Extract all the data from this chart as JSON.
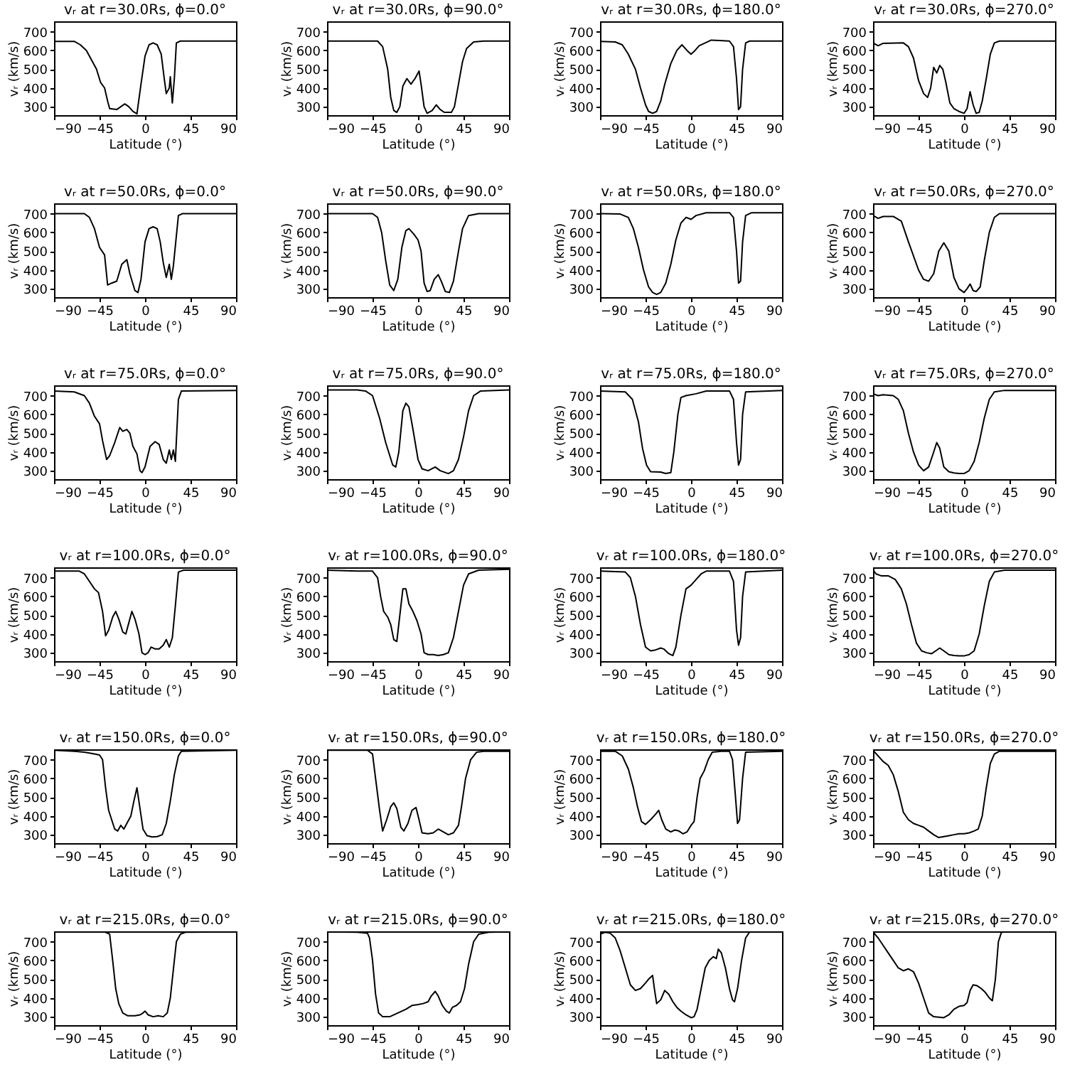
{
  "chart_data": [
    {
      "type": "line",
      "title": "vᵣ at r=30.0Rs, ϕ=0.0°",
      "xlabel": "Latitude (°)",
      "ylabel": "vᵣ (km/s)",
      "color": "#000000",
      "xlim": [
        -90,
        90
      ],
      "xticks": [
        -90,
        -45,
        0,
        45,
        90
      ],
      "ylim": [
        255,
        755
      ],
      "yticks": [
        300,
        400,
        500,
        600,
        700
      ],
      "x": [
        -90,
        -70,
        -64,
        -58,
        -52,
        -48,
        -44,
        -40,
        -37,
        -35,
        -28,
        -24,
        -20,
        -16,
        -12,
        -8,
        -4,
        0,
        4,
        8,
        12,
        16,
        19,
        21,
        24,
        25,
        27,
        29,
        31,
        35,
        90
      ],
      "values": [
        648,
        648,
        630,
        600,
        540,
        500,
        430,
        400,
        330,
        290,
        285,
        300,
        315,
        300,
        275,
        262,
        420,
        570,
        630,
        640,
        630,
        580,
        450,
        370,
        400,
        460,
        320,
        450,
        640,
        650,
        650
      ]
    },
    {
      "type": "line",
      "title": "vᵣ at r=30.0Rs, ϕ=90.0°",
      "xlabel": "Latitude (°)",
      "ylabel": "vᵣ (km/s)",
      "color": "#000000",
      "xlim": [
        -90,
        90
      ],
      "xticks": [
        -90,
        -45,
        0,
        45,
        90
      ],
      "ylim": [
        255,
        755
      ],
      "yticks": [
        300,
        400,
        500,
        600,
        700
      ],
      "x": [
        -90,
        -40,
        -35,
        -30,
        -27,
        -24,
        -21,
        -18,
        -15,
        -11,
        -7,
        -3,
        1,
        3,
        6,
        9,
        14,
        18,
        22,
        26,
        33,
        36,
        40,
        44,
        48,
        55,
        65,
        90
      ],
      "values": [
        650,
        650,
        620,
        500,
        350,
        280,
        270,
        300,
        410,
        450,
        420,
        450,
        490,
        420,
        300,
        265,
        280,
        310,
        285,
        270,
        270,
        300,
        420,
        540,
        610,
        645,
        650,
        650
      ]
    },
    {
      "type": "line",
      "title": "vᵣ at r=30.0Rs, ϕ=180.0°",
      "xlabel": "Latitude (°)",
      "ylabel": "vᵣ (km/s)",
      "color": "#000000",
      "xlim": [
        -90,
        90
      ],
      "xticks": [
        -90,
        -45,
        0,
        45,
        90
      ],
      "ylim": [
        255,
        755
      ],
      "yticks": [
        300,
        400,
        500,
        600,
        700
      ],
      "x": [
        -90,
        -75,
        -68,
        -62,
        -55,
        -50,
        -45,
        -42,
        -38,
        -34,
        -30,
        -26,
        -20,
        -14,
        -9,
        -4,
        0,
        4,
        8,
        14,
        20,
        38,
        42,
        45,
        47,
        49,
        51,
        54,
        58,
        90
      ],
      "values": [
        648,
        645,
        630,
        580,
        500,
        400,
        310,
        275,
        265,
        275,
        330,
        420,
        530,
        600,
        630,
        600,
        580,
        600,
        625,
        640,
        655,
        650,
        620,
        450,
        285,
        300,
        500,
        640,
        650,
        650
      ]
    },
    {
      "type": "line",
      "title": "vᵣ at r=30.0Rs, ϕ=270.0°",
      "xlabel": "Latitude (°)",
      "ylabel": "vᵣ (km/s)",
      "color": "#000000",
      "xlim": [
        -90,
        90
      ],
      "xticks": [
        -90,
        -45,
        0,
        45,
        90
      ],
      "ylim": [
        255,
        755
      ],
      "yticks": [
        300,
        400,
        500,
        600,
        700
      ],
      "x": [
        -90,
        -85,
        -80,
        -60,
        -55,
        -50,
        -45,
        -40,
        -36,
        -33,
        -30,
        -27,
        -24,
        -21,
        -18,
        -14,
        -10,
        -5,
        0,
        3,
        6,
        9,
        12,
        15,
        18,
        22,
        26,
        30,
        35,
        90
      ],
      "values": [
        640,
        625,
        638,
        640,
        620,
        560,
        440,
        370,
        350,
        400,
        510,
        480,
        520,
        500,
        430,
        320,
        290,
        275,
        265,
        290,
        380,
        310,
        265,
        270,
        330,
        450,
        580,
        640,
        650,
        650
      ]
    },
    {
      "type": "line",
      "title": "vᵣ at r=50.0Rs, ϕ=0.0°",
      "xlabel": "Latitude (°)",
      "ylabel": "vᵣ (km/s)",
      "color": "#000000",
      "xlim": [
        -90,
        90
      ],
      "xticks": [
        -90,
        -45,
        0,
        45,
        90
      ],
      "ylim": [
        255,
        755
      ],
      "yticks": [
        300,
        400,
        500,
        600,
        700
      ],
      "x": [
        -90,
        -60,
        -55,
        -50,
        -45,
        -40,
        -37,
        -33,
        -28,
        -23,
        -18,
        -15,
        -10,
        -7,
        -4,
        0,
        4,
        8,
        12,
        15,
        18,
        21,
        24,
        26,
        28,
        33,
        37,
        90
      ],
      "values": [
        700,
        700,
        680,
        620,
        520,
        480,
        320,
        330,
        340,
        430,
        455,
        380,
        290,
        280,
        350,
        550,
        620,
        630,
        620,
        550,
        440,
        360,
        430,
        350,
        420,
        690,
        700,
        700
      ]
    },
    {
      "type": "line",
      "title": "vᵣ at r=50.0Rs, ϕ=90.0°",
      "xlabel": "Latitude (°)",
      "ylabel": "vᵣ (km/s)",
      "color": "#000000",
      "xlim": [
        -90,
        90
      ],
      "xticks": [
        -90,
        -45,
        0,
        45,
        90
      ],
      "ylim": [
        255,
        755
      ],
      "yticks": [
        300,
        400,
        500,
        600,
        700
      ],
      "x": [
        -90,
        -45,
        -40,
        -36,
        -32,
        -28,
        -24,
        -20,
        -16,
        -12,
        -9,
        -4,
        0,
        3,
        6,
        9,
        12,
        16,
        20,
        23,
        27,
        31,
        35,
        40,
        44,
        50,
        60,
        90
      ],
      "values": [
        700,
        700,
        680,
        600,
        450,
        320,
        290,
        350,
        520,
        610,
        620,
        590,
        560,
        500,
        330,
        285,
        290,
        350,
        375,
        340,
        285,
        280,
        340,
        500,
        620,
        690,
        700,
        700
      ]
    },
    {
      "type": "line",
      "title": "vᵣ at r=50.0Rs, ϕ=180.0°",
      "xlabel": "Latitude (°)",
      "ylabel": "vᵣ (km/s)",
      "color": "#000000",
      "xlim": [
        -90,
        90
      ],
      "xticks": [
        -90,
        -45,
        0,
        45,
        90
      ],
      "ylim": [
        255,
        755
      ],
      "yticks": [
        300,
        400,
        500,
        600,
        700
      ],
      "x": [
        -90,
        -70,
        -62,
        -57,
        -52,
        -47,
        -42,
        -38,
        -34,
        -30,
        -25,
        -20,
        -15,
        -10,
        -5,
        0,
        5,
        15,
        38,
        42,
        45,
        47,
        49,
        51,
        54,
        60,
        90
      ],
      "values": [
        700,
        698,
        680,
        620,
        520,
        400,
        310,
        280,
        270,
        280,
        330,
        430,
        560,
        650,
        680,
        670,
        690,
        705,
        705,
        680,
        500,
        330,
        340,
        550,
        690,
        705,
        705
      ]
    },
    {
      "type": "line",
      "title": "vᵣ at r=50.0Rs, ϕ=270.0°",
      "xlabel": "Latitude (°)",
      "ylabel": "vᵣ (km/s)",
      "color": "#000000",
      "xlim": [
        -90,
        90
      ],
      "xticks": [
        -90,
        -45,
        0,
        45,
        90
      ],
      "ylim": [
        255,
        755
      ],
      "yticks": [
        300,
        400,
        500,
        600,
        700
      ],
      "x": [
        -90,
        -85,
        -80,
        -70,
        -62,
        -55,
        -45,
        -40,
        -35,
        -30,
        -25,
        -20,
        -15,
        -10,
        -5,
        0,
        3,
        6,
        9,
        12,
        16,
        20,
        25,
        30,
        35,
        90
      ],
      "values": [
        690,
        675,
        685,
        685,
        660,
        550,
        400,
        350,
        340,
        380,
        500,
        545,
        500,
        360,
        300,
        280,
        300,
        325,
        290,
        285,
        310,
        450,
        600,
        680,
        700,
        700
      ]
    },
    {
      "type": "line",
      "title": "vᵣ at r=75.0Rs, ϕ=0.0°",
      "xlabel": "Latitude (°)",
      "ylabel": "vᵣ (km/s)",
      "color": "#000000",
      "xlim": [
        -90,
        90
      ],
      "xticks": [
        -90,
        -45,
        0,
        45,
        90
      ],
      "ylim": [
        255,
        755
      ],
      "yticks": [
        300,
        400,
        500,
        600,
        700
      ],
      "x": [
        -90,
        -70,
        -60,
        -55,
        -50,
        -45,
        -42,
        -38,
        -35,
        -30,
        -25,
        -22,
        -18,
        -15,
        -12,
        -8,
        -5,
        -3,
        0,
        5,
        10,
        14,
        18,
        21,
        24,
        26,
        28,
        30,
        33,
        36,
        90
      ],
      "values": [
        725,
        720,
        700,
        660,
        590,
        550,
        460,
        360,
        380,
        450,
        530,
        510,
        520,
        500,
        430,
        390,
        300,
        290,
        320,
        430,
        455,
        440,
        360,
        340,
        410,
        360,
        410,
        350,
        680,
        725,
        728
      ]
    },
    {
      "type": "line",
      "title": "vᵣ at r=75.0Rs, ϕ=90.0°",
      "xlabel": "Latitude (°)",
      "ylabel": "vᵣ (km/s)",
      "color": "#000000",
      "xlim": [
        -90,
        90
      ],
      "xticks": [
        -90,
        -45,
        0,
        45,
        90
      ],
      "ylim": [
        255,
        755
      ],
      "yticks": [
        300,
        400,
        500,
        600,
        700
      ],
      "x": [
        -90,
        -60,
        -52,
        -45,
        -38,
        -32,
        -25,
        -22,
        -19,
        -15,
        -12,
        -9,
        -5,
        0,
        4,
        10,
        17,
        22,
        30,
        35,
        40,
        45,
        50,
        55,
        62,
        90
      ],
      "values": [
        730,
        730,
        725,
        700,
        580,
        450,
        330,
        320,
        400,
        620,
        660,
        640,
        520,
        360,
        310,
        300,
        320,
        300,
        285,
        300,
        360,
        480,
        620,
        700,
        725,
        730
      ]
    },
    {
      "type": "line",
      "title": "vᵣ at r=75.0Rs, ϕ=180.0°",
      "xlabel": "Latitude (°)",
      "ylabel": "vᵣ (km/s)",
      "color": "#000000",
      "xlim": [
        -90,
        90
      ],
      "xticks": [
        -90,
        -45,
        0,
        45,
        90
      ],
      "ylim": [
        255,
        755
      ],
      "yticks": [
        300,
        400,
        500,
        600,
        700
      ],
      "x": [
        -90,
        -65,
        -58,
        -52,
        -48,
        -44,
        -40,
        -30,
        -25,
        -20,
        -17,
        -13,
        -10,
        -5,
        5,
        15,
        38,
        42,
        45,
        47,
        49,
        51,
        54,
        90
      ],
      "values": [
        725,
        720,
        680,
        560,
        420,
        330,
        295,
        293,
        285,
        290,
        400,
        600,
        690,
        700,
        710,
        725,
        725,
        680,
        450,
        330,
        360,
        600,
        720,
        728
      ]
    },
    {
      "type": "line",
      "title": "vᵣ at r=75.0Rs, ϕ=270.0°",
      "xlabel": "Latitude (°)",
      "ylabel": "vᵣ (km/s)",
      "color": "#000000",
      "xlim": [
        -90,
        90
      ],
      "xticks": [
        -90,
        -45,
        0,
        45,
        90
      ],
      "ylim": [
        255,
        755
      ],
      "yticks": [
        300,
        400,
        500,
        600,
        700
      ],
      "x": [
        -90,
        -85,
        -80,
        -70,
        -65,
        -60,
        -55,
        -50,
        -45,
        -40,
        -35,
        -30,
        -27,
        -24,
        -20,
        -15,
        -10,
        -5,
        0,
        5,
        10,
        15,
        20,
        25,
        30,
        40,
        90
      ],
      "values": [
        710,
        700,
        705,
        700,
        680,
        620,
        500,
        400,
        330,
        300,
        320,
        400,
        450,
        420,
        320,
        295,
        288,
        285,
        285,
        300,
        350,
        450,
        580,
        680,
        720,
        728,
        728
      ]
    },
    {
      "type": "line",
      "title": "vᵣ at r=100.0Rs, ϕ=0.0°",
      "xlabel": "Latitude (°)",
      "ylabel": "vᵣ (km/s)",
      "color": "#000000",
      "xlim": [
        -90,
        90
      ],
      "xticks": [
        -90,
        -45,
        0,
        45,
        90
      ],
      "ylim": [
        255,
        755
      ],
      "yticks": [
        300,
        400,
        500,
        600,
        700
      ],
      "x": [
        -90,
        -65,
        -60,
        -55,
        -50,
        -46,
        -42,
        -39,
        -36,
        -32,
        -29,
        -26,
        -22,
        -19,
        -16,
        -13,
        -10,
        -6,
        -3,
        0,
        3,
        6,
        10,
        14,
        18,
        21,
        24,
        27,
        30,
        33,
        38,
        90
      ],
      "values": [
        735,
        735,
        720,
        680,
        640,
        620,
        520,
        390,
        420,
        490,
        520,
        480,
        410,
        400,
        460,
        520,
        480,
        400,
        300,
        290,
        300,
        330,
        320,
        320,
        340,
        370,
        330,
        380,
        550,
        730,
        740,
        740
      ]
    },
    {
      "type": "line",
      "title": "vᵣ at r=100.0Rs, ϕ=90.0°",
      "xlabel": "Latitude (°)",
      "ylabel": "vᵣ (km/s)",
      "color": "#000000",
      "xlim": [
        -90,
        90
      ],
      "xticks": [
        -90,
        -45,
        0,
        45,
        90
      ],
      "ylim": [
        255,
        755
      ],
      "yticks": [
        300,
        400,
        500,
        600,
        700
      ],
      "x": [
        -90,
        -60,
        -45,
        -40,
        -37,
        -34,
        -30,
        -27,
        -24,
        -21,
        -18,
        -15,
        -12,
        -9,
        -5,
        -1,
        3,
        6,
        10,
        15,
        20,
        25,
        30,
        35,
        40,
        45,
        50,
        60,
        90
      ],
      "values": [
        740,
        735,
        735,
        700,
        600,
        520,
        490,
        450,
        370,
        360,
        500,
        640,
        640,
        560,
        520,
        470,
        400,
        300,
        290,
        290,
        285,
        290,
        300,
        380,
        520,
        660,
        720,
        740,
        745
      ]
    },
    {
      "type": "line",
      "title": "vᵣ at r=100.0Rs, ϕ=180.0°",
      "xlabel": "Latitude (°)",
      "ylabel": "vᵣ (km/s)",
      "color": "#000000",
      "xlim": [
        -90,
        90
      ],
      "xticks": [
        -90,
        -45,
        0,
        45,
        90
      ],
      "ylim": [
        255,
        755
      ],
      "yticks": [
        300,
        400,
        500,
        600,
        700
      ],
      "x": [
        -90,
        -65,
        -60,
        -55,
        -50,
        -45,
        -40,
        -35,
        -30,
        -27,
        -22,
        -18,
        -15,
        -10,
        -5,
        0,
        5,
        10,
        15,
        38,
        42,
        45,
        47,
        49,
        51,
        54,
        90
      ],
      "values": [
        735,
        730,
        700,
        600,
        450,
        330,
        310,
        315,
        325,
        320,
        295,
        285,
        330,
        500,
        640,
        660,
        690,
        720,
        735,
        735,
        680,
        420,
        340,
        380,
        600,
        730,
        740
      ]
    },
    {
      "type": "line",
      "title": "vᵣ at r=100.0Rs, ϕ=270.0°",
      "xlabel": "Latitude (°)",
      "ylabel": "vᵣ (km/s)",
      "color": "#000000",
      "xlim": [
        -90,
        90
      ],
      "xticks": [
        -90,
        -45,
        0,
        45,
        90
      ],
      "ylim": [
        255,
        755
      ],
      "yticks": [
        300,
        400,
        500,
        600,
        700
      ],
      "x": [
        -90,
        -87,
        -82,
        -75,
        -68,
        -62,
        -57,
        -52,
        -47,
        -42,
        -37,
        -32,
        -28,
        -24,
        -20,
        -15,
        -10,
        -5,
        0,
        5,
        10,
        15,
        20,
        25,
        30,
        40,
        90
      ],
      "values": [
        740,
        720,
        710,
        710,
        690,
        640,
        560,
        450,
        350,
        310,
        300,
        295,
        310,
        325,
        310,
        290,
        285,
        283,
        283,
        290,
        310,
        400,
        550,
        680,
        730,
        740,
        740
      ]
    },
    {
      "type": "line",
      "title": "vᵣ at r=150.0Rs, ϕ=0.0°",
      "xlabel": "Latitude (°)",
      "ylabel": "vᵣ (km/s)",
      "color": "#000000",
      "xlim": [
        -90,
        90
      ],
      "xticks": [
        -90,
        -45,
        0,
        45,
        90
      ],
      "ylim": [
        255,
        755
      ],
      "yticks": [
        300,
        400,
        500,
        600,
        700
      ],
      "x": [
        -90,
        -70,
        -60,
        -50,
        -45,
        -42,
        -39,
        -36,
        -33,
        -30,
        -27,
        -24,
        -21,
        -18,
        -14,
        -11,
        -8,
        -5,
        -2,
        2,
        7,
        12,
        17,
        21,
        25,
        29,
        33,
        36,
        90
      ],
      "values": [
        750,
        745,
        740,
        730,
        725,
        700,
        550,
        430,
        380,
        330,
        320,
        350,
        330,
        360,
        400,
        480,
        550,
        440,
        330,
        295,
        288,
        290,
        300,
        360,
        480,
        620,
        720,
        745,
        750
      ]
    },
    {
      "type": "line",
      "title": "vᵣ at r=150.0Rs, ϕ=90.0°",
      "xlabel": "Latitude (°)",
      "ylabel": "vᵣ (km/s)",
      "color": "#000000",
      "xlim": [
        -90,
        90
      ],
      "xticks": [
        -90,
        -45,
        0,
        45,
        90
      ],
      "ylim": [
        255,
        755
      ],
      "yticks": [
        300,
        400,
        500,
        600,
        700
      ],
      "x": [
        -90,
        -50,
        -45,
        -42,
        -38,
        -35,
        -31,
        -27,
        -24,
        -21,
        -17,
        -14,
        -10,
        -6,
        -2,
        1,
        4,
        10,
        15,
        20,
        25,
        30,
        35,
        40,
        43,
        47,
        52,
        58,
        65,
        90
      ],
      "values": [
        750,
        750,
        730,
        600,
        430,
        320,
        380,
        450,
        470,
        440,
        340,
        320,
        360,
        430,
        445,
        380,
        310,
        305,
        310,
        330,
        315,
        300,
        310,
        350,
        450,
        600,
        700,
        740,
        745,
        745
      ]
    },
    {
      "type": "line",
      "title": "vᵣ at r=150.0Rs, ϕ=180.0°",
      "xlabel": "Latitude (°)",
      "ylabel": "vᵣ (km/s)",
      "color": "#000000",
      "xlim": [
        -90,
        90
      ],
      "xticks": [
        -90,
        -45,
        0,
        45,
        90
      ],
      "ylim": [
        255,
        755
      ],
      "yticks": [
        300,
        400,
        500,
        600,
        700
      ],
      "x": [
        -90,
        -75,
        -68,
        -62,
        -57,
        -53,
        -49,
        -45,
        -40,
        -35,
        -32,
        -29,
        -25,
        -20,
        -16,
        -12,
        -8,
        -4,
        0,
        3,
        6,
        9,
        13,
        17,
        21,
        30,
        38,
        41,
        44,
        46,
        48,
        51,
        54,
        90
      ],
      "values": [
        745,
        745,
        720,
        650,
        550,
        450,
        370,
        355,
        380,
        410,
        430,
        380,
        330,
        315,
        325,
        320,
        305,
        315,
        350,
        370,
        500,
        600,
        640,
        700,
        740,
        745,
        745,
        700,
        500,
        360,
        380,
        600,
        740,
        745
      ]
    },
    {
      "type": "line",
      "title": "vᵣ at r=150.0Rs, ϕ=270.0°",
      "xlabel": "Latitude (°)",
      "ylabel": "vᵣ (km/s)",
      "color": "#000000",
      "xlim": [
        -90,
        90
      ],
      "xticks": [
        -90,
        -45,
        0,
        45,
        90
      ],
      "ylim": [
        255,
        755
      ],
      "yticks": [
        300,
        400,
        500,
        600,
        700
      ],
      "x": [
        -90,
        -85,
        -80,
        -75,
        -70,
        -65,
        -60,
        -55,
        -50,
        -45,
        -40,
        -35,
        -30,
        -25,
        -20,
        -15,
        -10,
        -5,
        0,
        5,
        10,
        14,
        18,
        22,
        26,
        30,
        35,
        90
      ],
      "values": [
        750,
        720,
        690,
        670,
        620,
        530,
        420,
        380,
        360,
        350,
        340,
        320,
        300,
        285,
        290,
        295,
        300,
        305,
        305,
        310,
        320,
        330,
        400,
        550,
        680,
        730,
        745,
        745
      ]
    },
    {
      "type": "line",
      "title": "vᵣ at r=215.0Rs, ϕ=0.0°",
      "xlabel": "Latitude (°)",
      "ylabel": "vᵣ (km/s)",
      "color": "#000000",
      "xlim": [
        -90,
        90
      ],
      "xticks": [
        -90,
        -45,
        0,
        45,
        90
      ],
      "ylim": [
        255,
        755
      ],
      "yticks": [
        300,
        400,
        500,
        600,
        700
      ],
      "x": [
        -90,
        -40,
        -35,
        -32,
        -29,
        -26,
        -22,
        -17,
        -10,
        -5,
        -2,
        0,
        3,
        8,
        13,
        18,
        22,
        25,
        28,
        31,
        35,
        40,
        90
      ],
      "values": [
        752,
        752,
        740,
        600,
        450,
        370,
        320,
        305,
        305,
        310,
        320,
        330,
        310,
        300,
        305,
        300,
        320,
        400,
        550,
        700,
        740,
        750,
        752
      ]
    },
    {
      "type": "line",
      "title": "vᵣ at r=215.0Rs, ϕ=90.0°",
      "xlabel": "Latitude (°)",
      "ylabel": "vᵣ (km/s)",
      "color": "#000000",
      "xlim": [
        -90,
        90
      ],
      "xticks": [
        -90,
        -45,
        0,
        45,
        90
      ],
      "ylim": [
        255,
        755
      ],
      "yticks": [
        300,
        400,
        500,
        600,
        700
      ],
      "x": [
        -90,
        -60,
        -50,
        -48,
        -45,
        -42,
        -39,
        -35,
        -28,
        -20,
        -12,
        -6,
        0,
        5,
        10,
        13,
        17,
        20,
        24,
        28,
        31,
        34,
        38,
        42,
        46,
        50,
        55,
        60,
        70,
        90
      ],
      "values": [
        752,
        750,
        745,
        720,
        600,
        420,
        320,
        300,
        300,
        320,
        340,
        360,
        365,
        370,
        380,
        410,
        435,
        410,
        360,
        330,
        320,
        350,
        360,
        380,
        450,
        580,
        700,
        740,
        750,
        752
      ]
    },
    {
      "type": "line",
      "title": "vᵣ at r=215.0Rs, ϕ=180.0°",
      "xlabel": "Latitude (°)",
      "ylabel": "vᵣ (km/s)",
      "color": "#000000",
      "xlim": [
        -90,
        90
      ],
      "xticks": [
        -90,
        -45,
        0,
        45,
        90
      ],
      "ylim": [
        255,
        755
      ],
      "yticks": [
        300,
        400,
        500,
        600,
        700
      ],
      "x": [
        -90,
        -85,
        -80,
        -75,
        -70,
        -65,
        -60,
        -55,
        -50,
        -45,
        -42,
        -38,
        -36,
        -34,
        -30,
        -26,
        -22,
        -18,
        -14,
        -10,
        -5,
        0,
        3,
        6,
        10,
        14,
        18,
        22,
        25,
        27,
        30,
        34,
        38,
        41,
        43,
        46,
        50,
        54,
        58,
        90
      ],
      "values": [
        740,
        750,
        745,
        720,
        650,
        560,
        470,
        440,
        450,
        480,
        500,
        520,
        440,
        370,
        390,
        440,
        420,
        380,
        350,
        330,
        310,
        295,
        300,
        340,
        450,
        560,
        600,
        620,
        610,
        660,
        640,
        560,
        450,
        390,
        380,
        450,
        600,
        720,
        752,
        752
      ]
    },
    {
      "type": "line",
      "title": "vᵣ at r=215.0Rs, ϕ=270.0°",
      "xlabel": "Latitude (°)",
      "ylabel": "vᵣ (km/s)",
      "color": "#000000",
      "xlim": [
        -90,
        90
      ],
      "xticks": [
        -90,
        -45,
        0,
        45,
        90
      ],
      "ylim": [
        255,
        755
      ],
      "yticks": [
        300,
        400,
        500,
        600,
        700
      ],
      "x": [
        -90,
        -85,
        -80,
        -75,
        -70,
        -65,
        -60,
        -55,
        -50,
        -45,
        -40,
        -35,
        -30,
        -25,
        -20,
        -15,
        -10,
        -5,
        0,
        3,
        6,
        9,
        13,
        17,
        21,
        25,
        28,
        31,
        34,
        37,
        45,
        90
      ],
      "values": [
        752,
        720,
        680,
        640,
        600,
        560,
        545,
        555,
        540,
        480,
        400,
        320,
        300,
        298,
        295,
        310,
        340,
        355,
        360,
        375,
        440,
        470,
        465,
        450,
        430,
        400,
        385,
        500,
        700,
        750,
        752,
        752
      ]
    }
  ]
}
